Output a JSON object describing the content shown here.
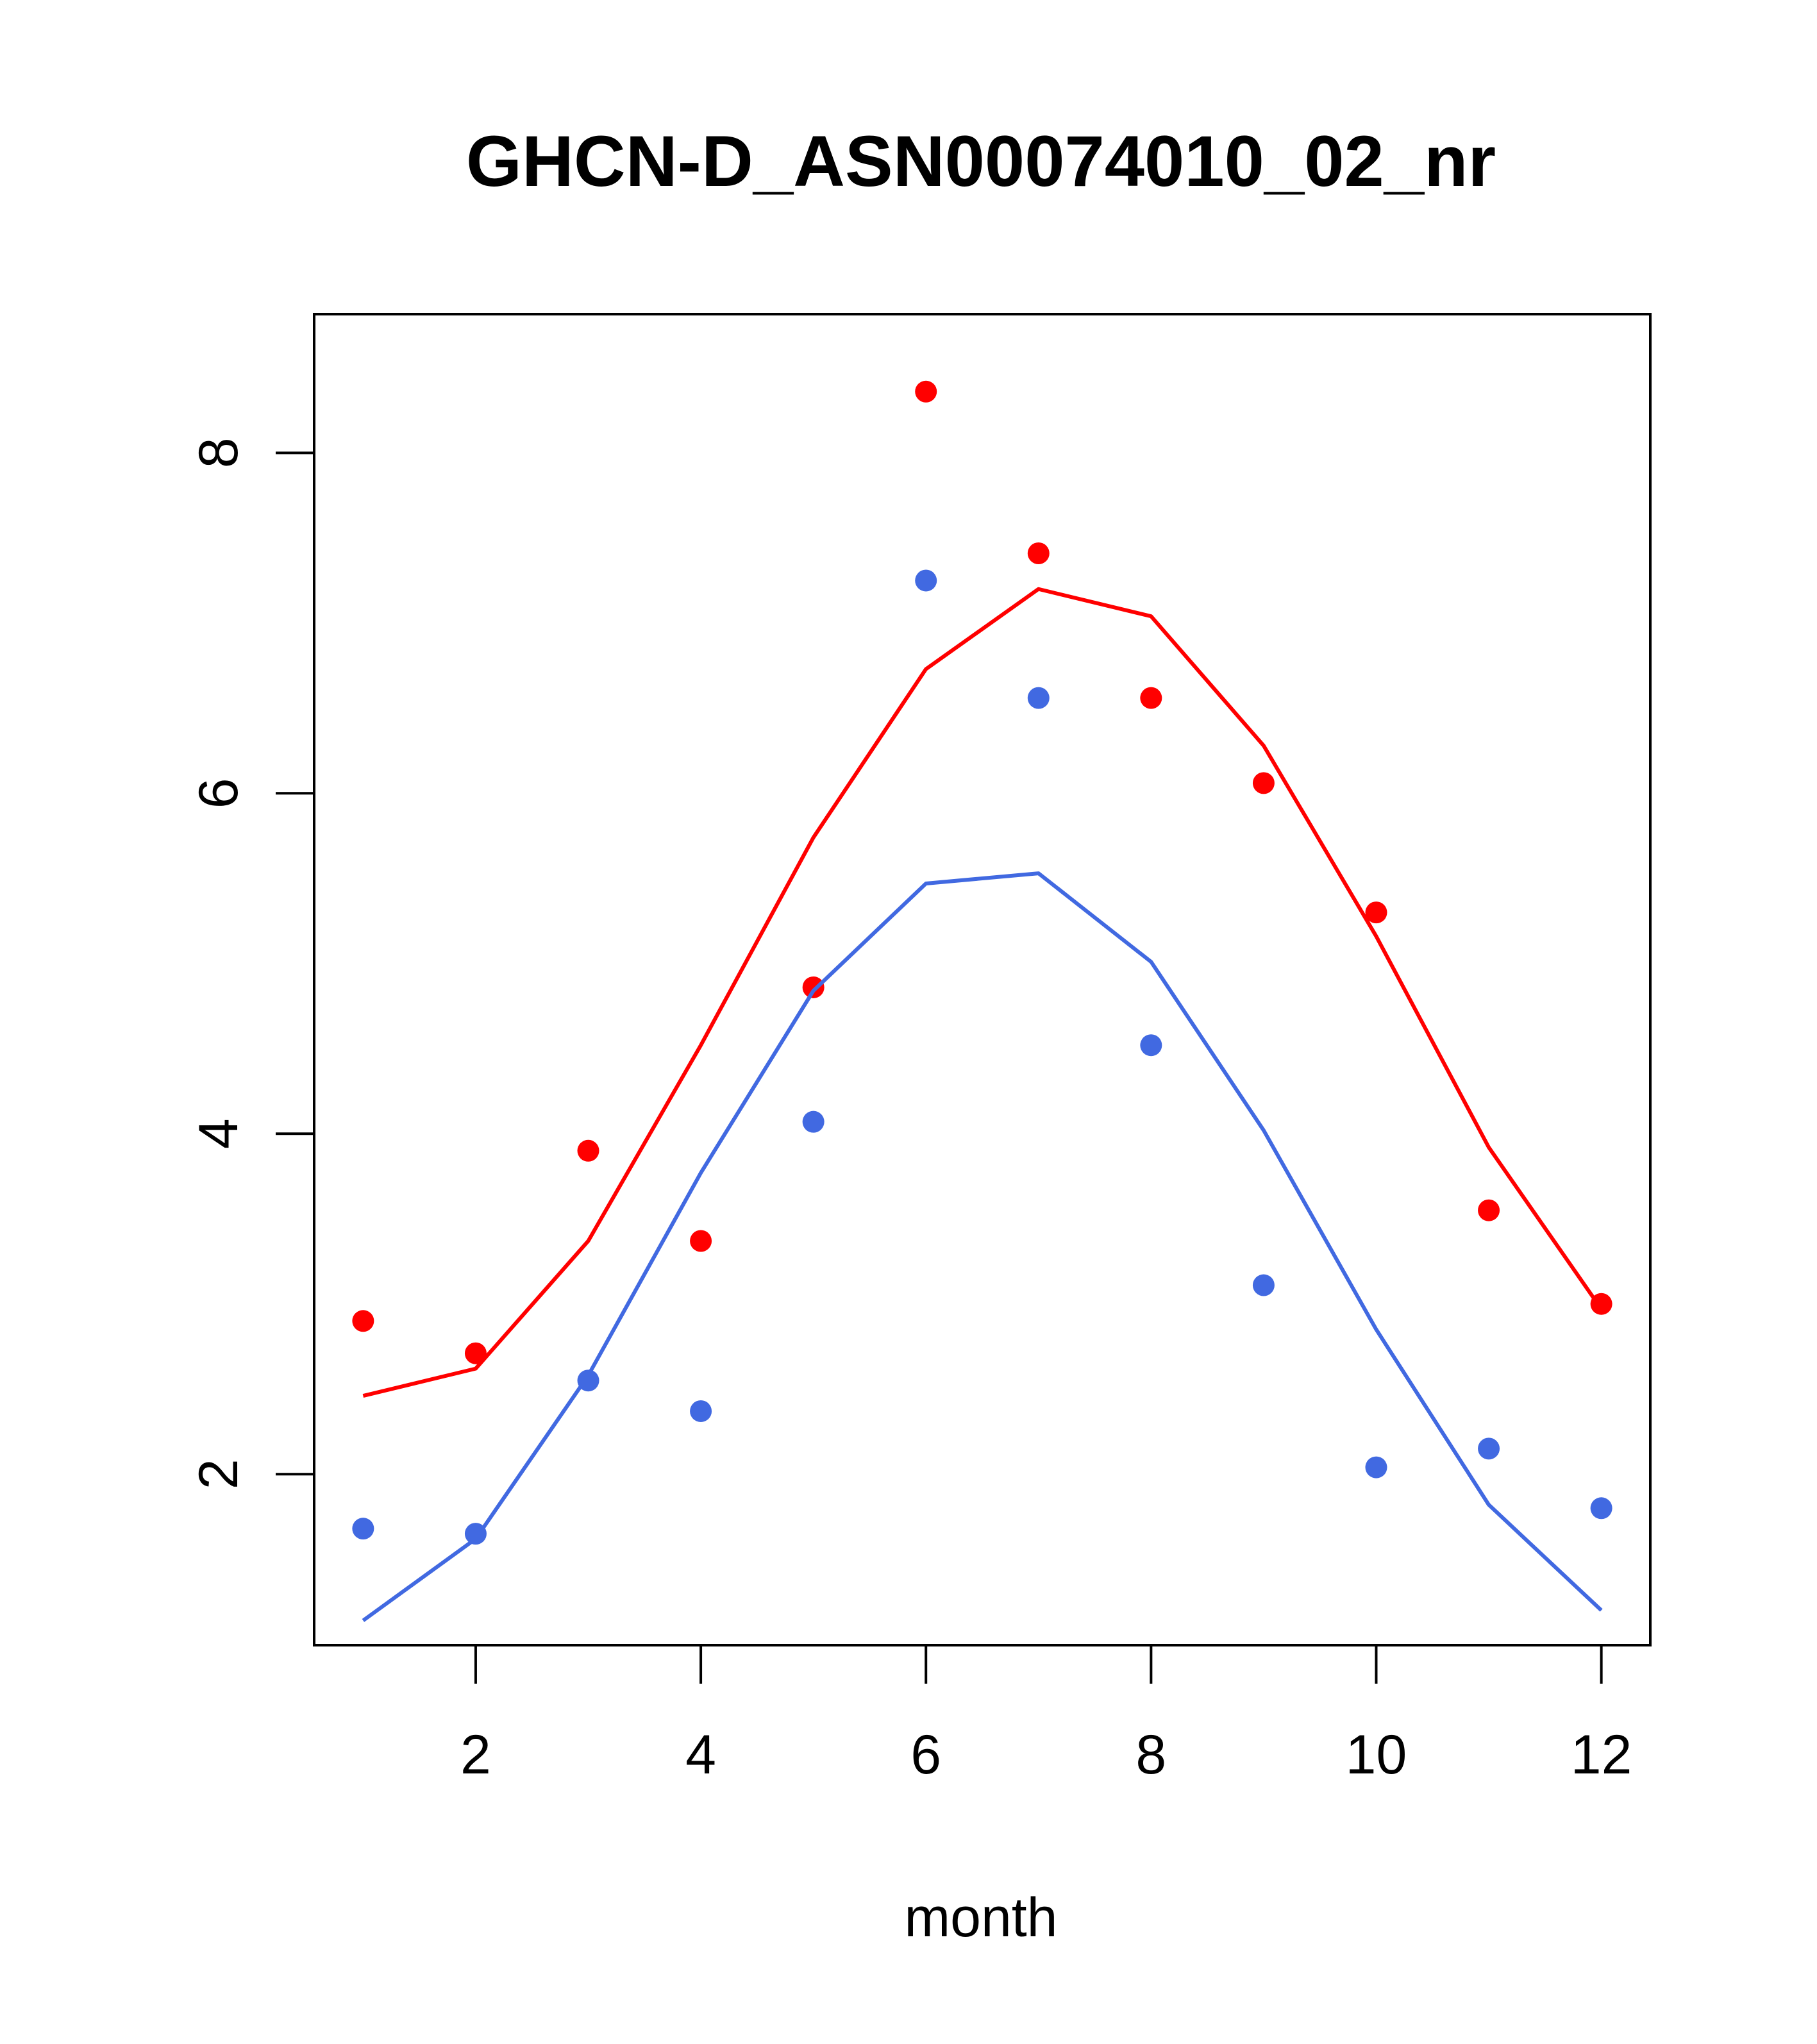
{
  "chart_data": {
    "type": "line",
    "title": "GHCN-D_ASN00074010_02_nr",
    "xlabel": "month",
    "ylabel": "",
    "xlim": [
      0.565,
      12.435
    ],
    "ylim": [
      0.995,
      8.815
    ],
    "x_ticks": [
      2,
      4,
      6,
      8,
      10,
      12
    ],
    "y_ticks": [
      2,
      4,
      6,
      8
    ],
    "grid": false,
    "series": [
      {
        "color": "#ff0000",
        "x": [
          1,
          2,
          3,
          4,
          5,
          6,
          7,
          8,
          9,
          10,
          11,
          12
        ],
        "points": [
          2.9,
          2.71,
          3.9,
          3.37,
          4.86,
          8.36,
          7.41,
          6.56,
          6.06,
          5.3,
          3.55,
          3.0
        ],
        "line": [
          2.46,
          2.62,
          3.37,
          4.52,
          5.74,
          6.73,
          7.2,
          7.04,
          6.28,
          5.16,
          3.92,
          2.97
        ]
      },
      {
        "color": "#4169e1",
        "x": [
          1,
          2,
          3,
          4,
          5,
          6,
          7,
          8,
          9,
          10,
          11,
          12
        ],
        "points": [
          1.68,
          1.65,
          2.55,
          2.37,
          4.07,
          7.25,
          6.56,
          4.52,
          3.11,
          2.04,
          2.15,
          1.8
        ],
        "line": [
          1.14,
          1.62,
          2.58,
          3.77,
          4.84,
          5.47,
          5.53,
          5.01,
          4.02,
          2.85,
          1.82,
          1.2
        ]
      }
    ]
  }
}
